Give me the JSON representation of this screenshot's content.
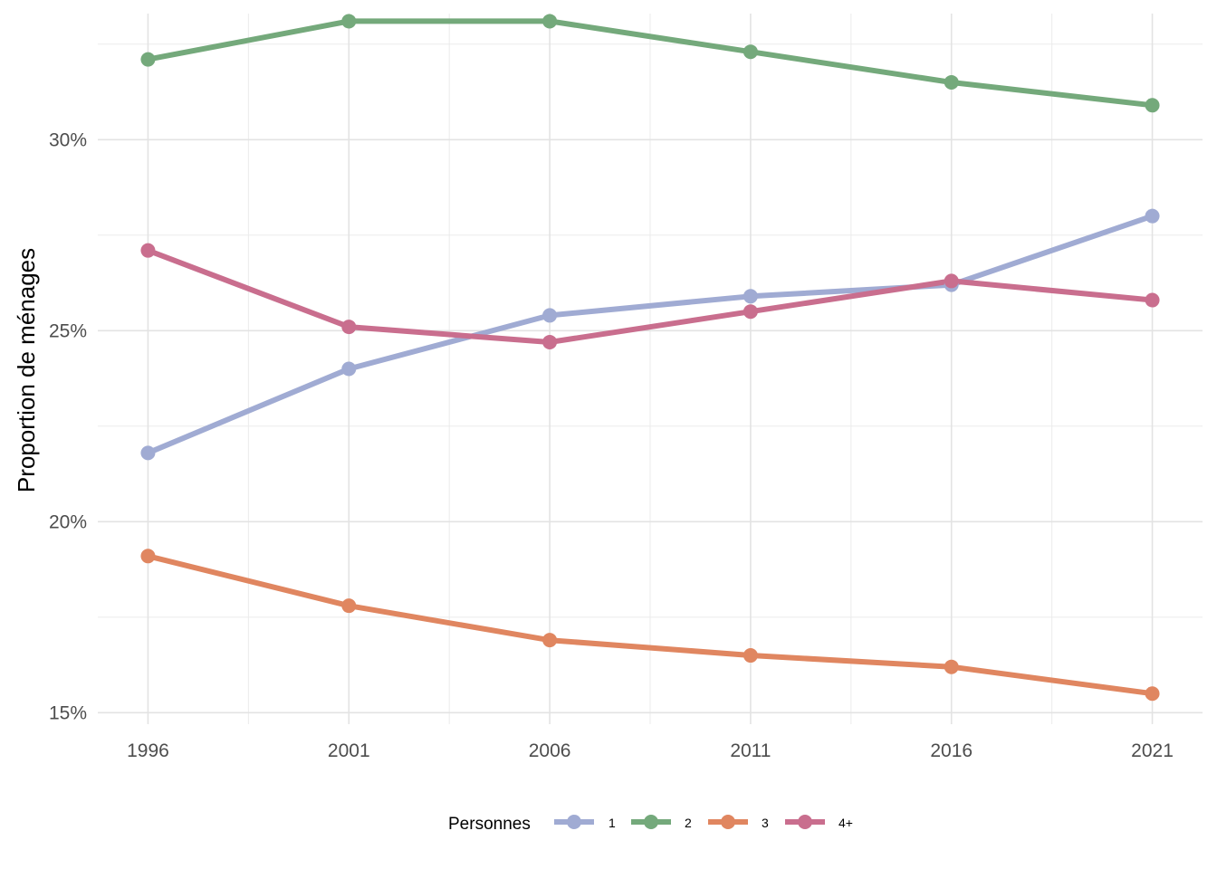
{
  "chart_data": {
    "type": "line",
    "title": "",
    "xlabel": "",
    "ylabel": "Proportion de ménages",
    "x": [
      1996,
      2001,
      2006,
      2011,
      2016,
      2021
    ],
    "x_tick_labels": [
      "1996",
      "2001",
      "2006",
      "2011",
      "2016",
      "2021"
    ],
    "y_ticks": [
      15,
      20,
      25,
      30
    ],
    "y_tick_labels": [
      "15%",
      "20%",
      "25%",
      "30%"
    ],
    "ylim": [
      14.7,
      33.3
    ],
    "grid": true,
    "legend": {
      "title": "Personnes",
      "position": "bottom"
    },
    "series": [
      {
        "name": "1",
        "color": "#a0abd3",
        "values": [
          21.8,
          24.0,
          25.4,
          25.9,
          26.2,
          28.0
        ]
      },
      {
        "name": "2",
        "color": "#74a97b",
        "values": [
          32.1,
          33.1,
          33.1,
          32.3,
          31.5,
          30.9
        ]
      },
      {
        "name": "3",
        "color": "#e08660",
        "values": [
          19.1,
          17.8,
          16.9,
          16.5,
          16.2,
          15.5
        ]
      },
      {
        "name": "4+",
        "color": "#c96e8e",
        "values": [
          27.1,
          25.1,
          24.7,
          25.5,
          26.3,
          25.8
        ]
      }
    ]
  }
}
